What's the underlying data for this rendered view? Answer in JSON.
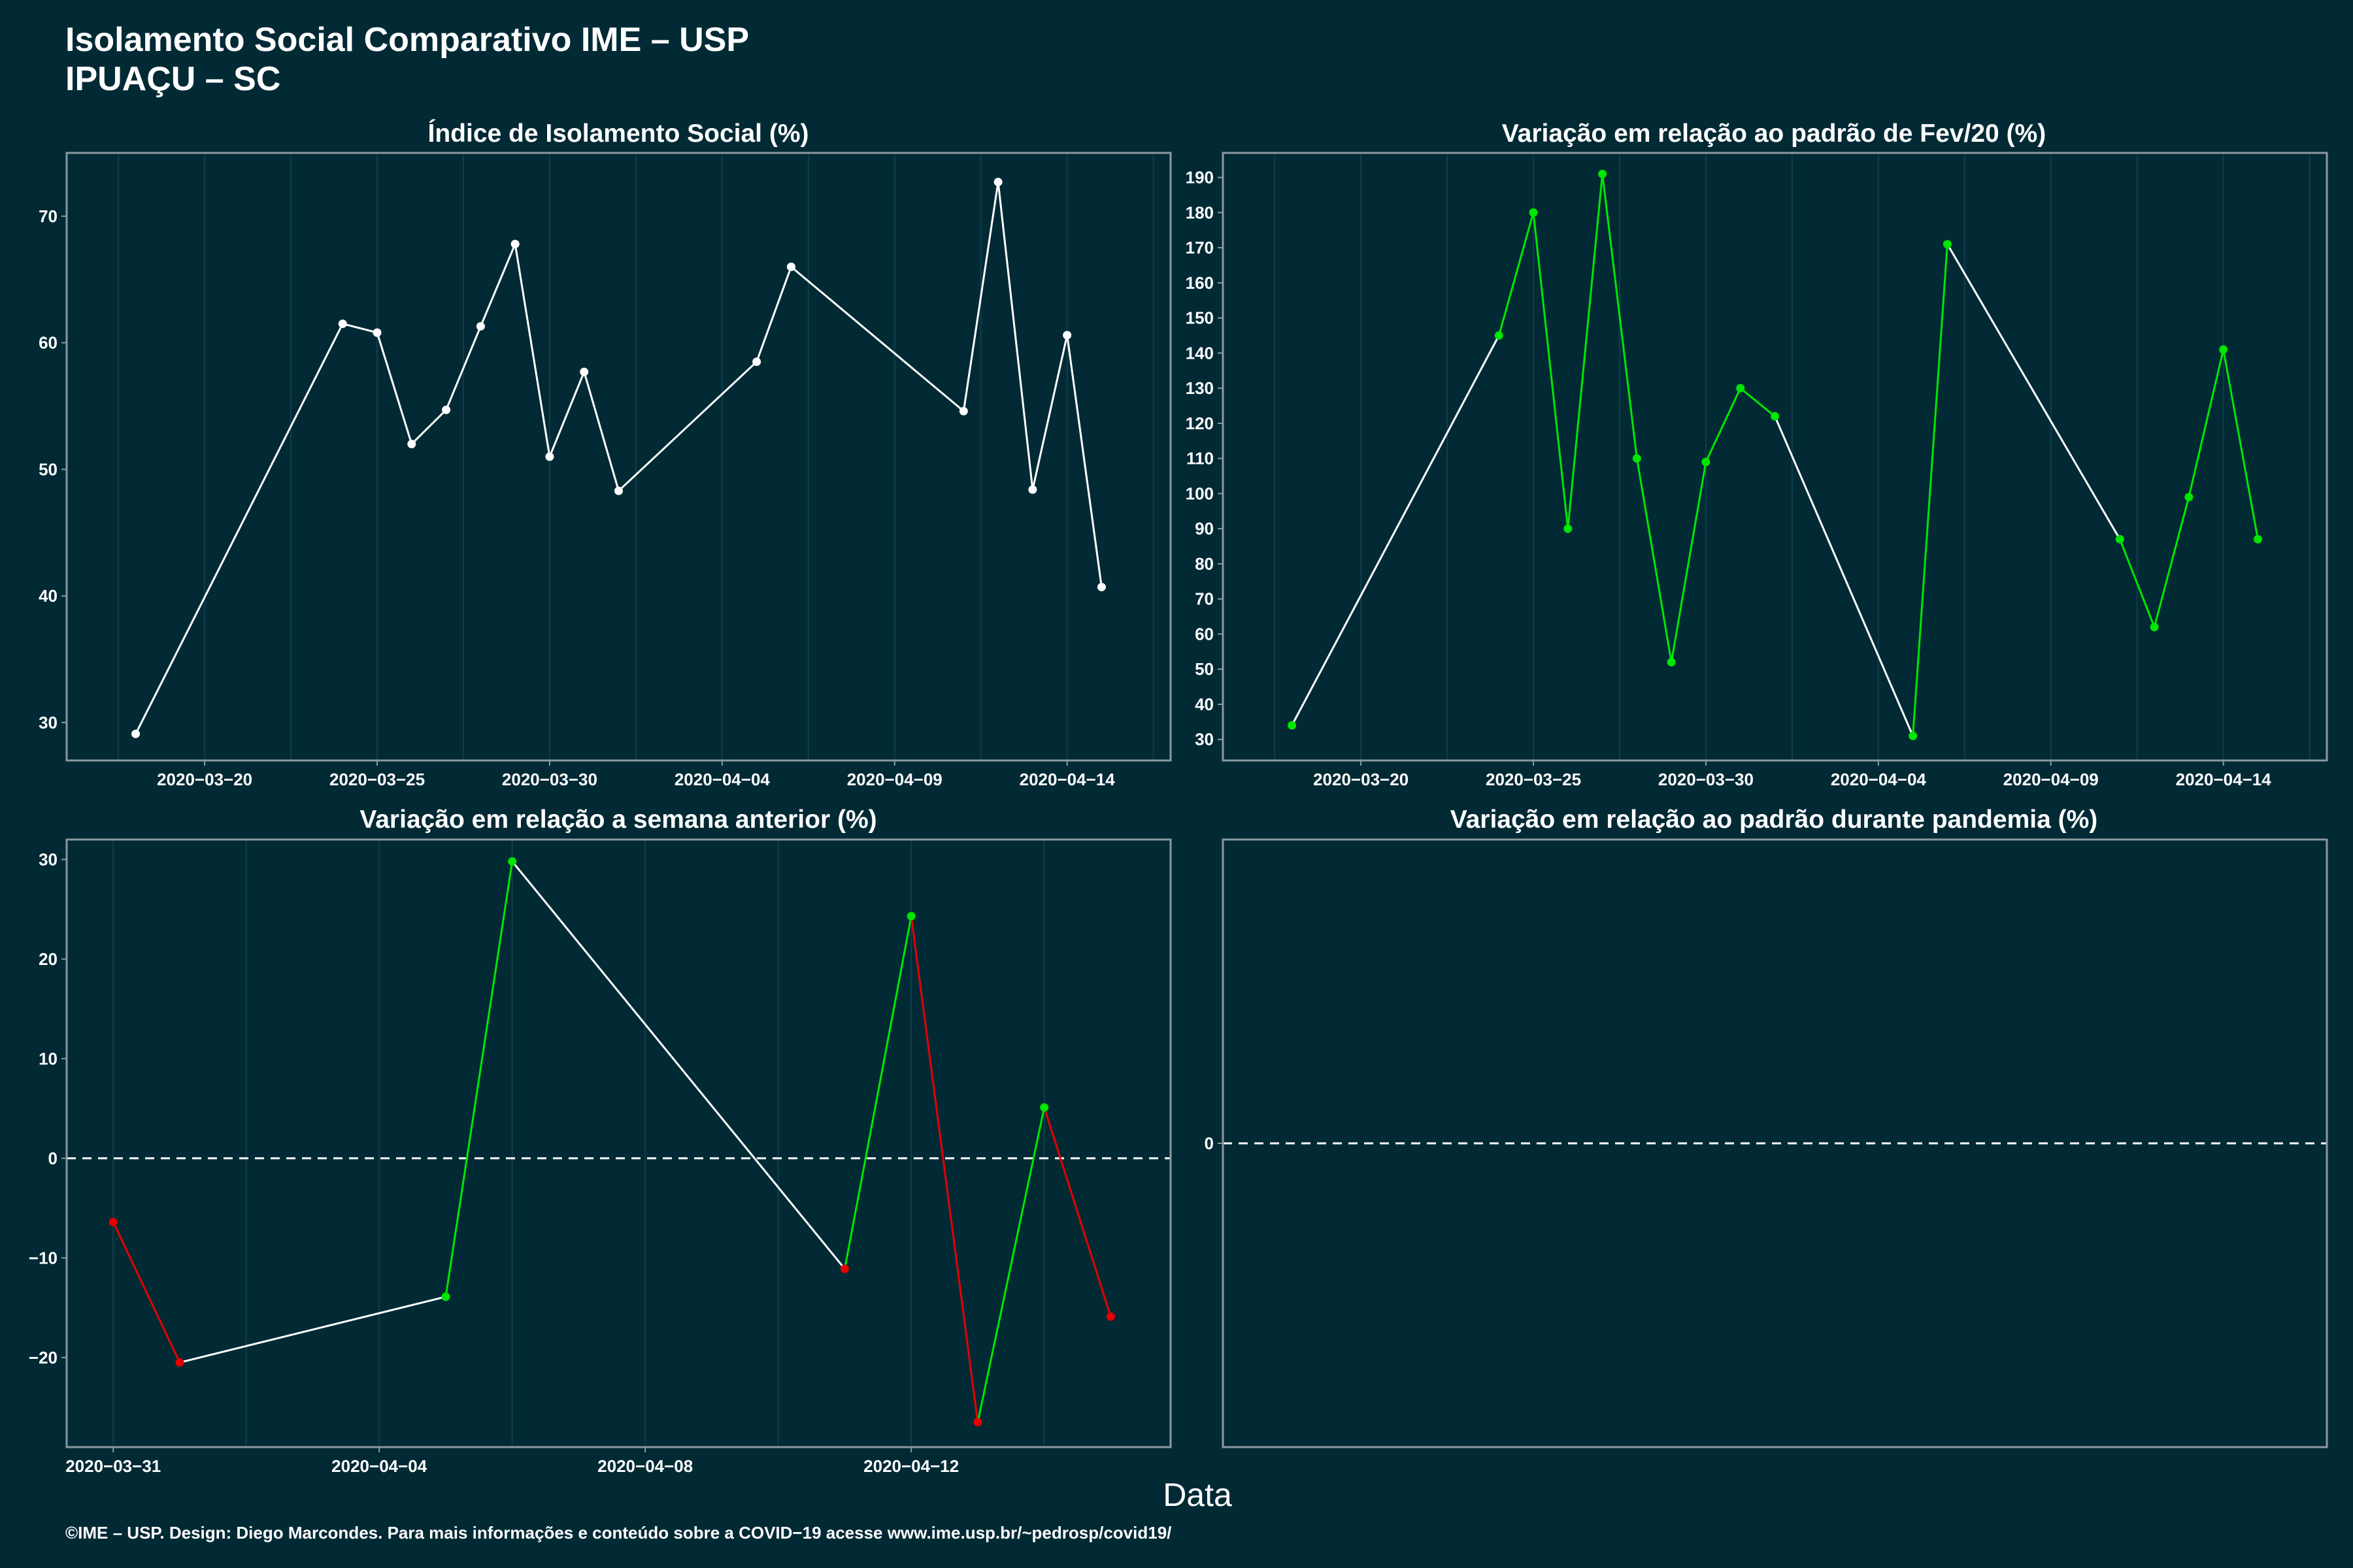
{
  "page": {
    "title_line1": "Isolamento Social Comparativo IME – USP",
    "title_line2": "IPUAÇU – SC",
    "xlabel": "Data",
    "caption": "©IME – USP. Design: Diego Marcondes. Para mais informações e conteúdo sobre a COVID−19 acesse www.ime.usp.br/~pedrosp/covid19/"
  },
  "colors": {
    "background": "#022a35",
    "panel_border": "#8a9aa0",
    "grid": "#0f3e4a",
    "neutral_line": "#ffffff",
    "increase": "#00e600",
    "decrease": "#e60000"
  },
  "chart_data": [
    {
      "type": "line",
      "title": "Índice de Isolamento Social (%)",
      "x_tick_labels": [
        "2020−03−20",
        "2020−03−25",
        "2020−03−30",
        "2020−04−04",
        "2020−04−09",
        "2020−04−14"
      ],
      "x_ticks": [
        "2020-03-20",
        "2020-03-25",
        "2020-03-30",
        "2020-04-04",
        "2020-04-09",
        "2020-04-14"
      ],
      "y_ticks": [
        30,
        40,
        50,
        60,
        70
      ],
      "xlim": [
        "2020-03-16",
        "2020-04-17"
      ],
      "ylim": [
        27,
        75
      ],
      "points": [
        {
          "x": "2020-03-18",
          "y": 29.1
        },
        {
          "x": "2020-03-24",
          "y": 61.5
        },
        {
          "x": "2020-03-25",
          "y": 60.8
        },
        {
          "x": "2020-03-26",
          "y": 52.0
        },
        {
          "x": "2020-03-27",
          "y": 54.7
        },
        {
          "x": "2020-03-28",
          "y": 61.3
        },
        {
          "x": "2020-03-29",
          "y": 67.8
        },
        {
          "x": "2020-03-30",
          "y": 51.0
        },
        {
          "x": "2020-03-31",
          "y": 57.7
        },
        {
          "x": "2020-04-01",
          "y": 48.3
        },
        {
          "x": "2020-04-05",
          "y": 58.5
        },
        {
          "x": "2020-04-06",
          "y": 66.0
        },
        {
          "x": "2020-04-11",
          "y": 54.6
        },
        {
          "x": "2020-04-12",
          "y": 72.7
        },
        {
          "x": "2020-04-13",
          "y": 48.4
        },
        {
          "x": "2020-04-14",
          "y": 60.6
        },
        {
          "x": "2020-04-15",
          "y": 40.7
        }
      ],
      "point_color": "#ffffff",
      "grid": true
    },
    {
      "type": "line",
      "title": "Variação em relação ao padrão de Fev/20 (%)",
      "x_tick_labels": [
        "2020−03−20",
        "2020−03−25",
        "2020−03−30",
        "2020−04−04",
        "2020−04−09",
        "2020−04−14"
      ],
      "x_ticks": [
        "2020-03-20",
        "2020-03-25",
        "2020-03-30",
        "2020-04-04",
        "2020-04-09",
        "2020-04-14"
      ],
      "y_ticks": [
        30,
        40,
        50,
        60,
        70,
        80,
        90,
        100,
        110,
        120,
        130,
        140,
        150,
        160,
        170,
        180,
        190
      ],
      "xlim": [
        "2020-03-16",
        "2020-04-17"
      ],
      "ylim": [
        24,
        197
      ],
      "points": [
        {
          "x": "2020-03-18",
          "y": 34
        },
        {
          "x": "2020-03-24",
          "y": 145
        },
        {
          "x": "2020-03-25",
          "y": 180
        },
        {
          "x": "2020-03-26",
          "y": 90
        },
        {
          "x": "2020-03-27",
          "y": 191
        },
        {
          "x": "2020-03-28",
          "y": 110
        },
        {
          "x": "2020-03-29",
          "y": 52
        },
        {
          "x": "2020-03-30",
          "y": 109
        },
        {
          "x": "2020-03-31",
          "y": 130
        },
        {
          "x": "2020-04-01",
          "y": 122
        },
        {
          "x": "2020-04-05",
          "y": 31
        },
        {
          "x": "2020-04-06",
          "y": 171
        },
        {
          "x": "2020-04-11",
          "y": 87
        },
        {
          "x": "2020-04-12",
          "y": 62
        },
        {
          "x": "2020-04-13",
          "y": 99
        },
        {
          "x": "2020-04-14",
          "y": 141
        },
        {
          "x": "2020-04-15",
          "y": 87
        }
      ],
      "point_color": "#00e600",
      "color_rule": "consecutive-days-green-else-white",
      "grid": true
    },
    {
      "type": "line",
      "title": "Variação em relação a semana anterior (%)",
      "x_tick_labels": [
        "2020−03−31",
        "2020−04−04",
        "2020−04−08",
        "2020−04−12"
      ],
      "x_ticks": [
        "2020-03-31",
        "2020-04-04",
        "2020-04-08",
        "2020-04-12"
      ],
      "y_ticks": [
        -20,
        -10,
        0,
        10,
        20,
        30
      ],
      "y_tick_labels": [
        "−20",
        "−10",
        "0",
        "10",
        "20",
        "30"
      ],
      "xlim": [
        "2020-03-30.3",
        "2020-04-15.9"
      ],
      "ylim": [
        -29,
        32
      ],
      "reference_line": 0,
      "points": [
        {
          "x": "2020-03-31",
          "y": -6.4
        },
        {
          "x": "2020-04-01",
          "y": -20.5
        },
        {
          "x": "2020-04-05",
          "y": -13.9
        },
        {
          "x": "2020-04-06",
          "y": 29.8
        },
        {
          "x": "2020-04-11",
          "y": -11.1
        },
        {
          "x": "2020-04-12",
          "y": 24.3
        },
        {
          "x": "2020-04-13",
          "y": -26.5
        },
        {
          "x": "2020-04-14",
          "y": 5.1
        },
        {
          "x": "2020-04-15",
          "y": -15.9
        }
      ],
      "color_rule": "green-if-rising-red-if-falling-white-if-gap",
      "grid": true
    },
    {
      "type": "line",
      "title": "Variação em relação ao padrão durante pandemia (%)",
      "y_ticks": [
        0
      ],
      "reference_line": 0,
      "points": [],
      "grid": false
    }
  ]
}
